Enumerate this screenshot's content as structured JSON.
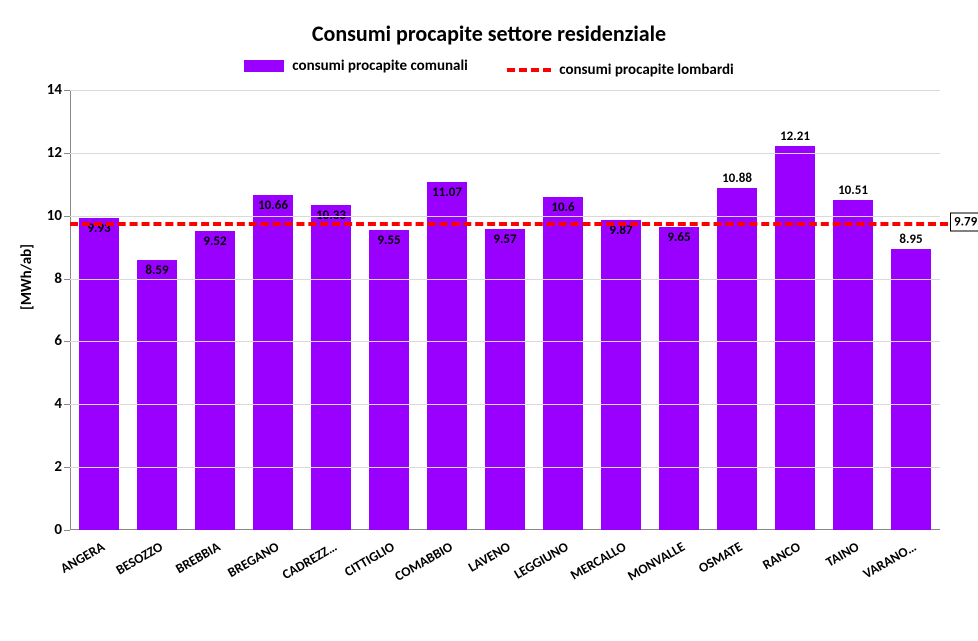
{
  "chart": {
    "type": "bar",
    "title": "Consumi procapite settore residenziale",
    "title_fontsize": 22,
    "ylabel": "[MWh/ab]",
    "label_fontsize": 15,
    "ylim": [
      0,
      14
    ],
    "ytick_step": 2,
    "yticks": [
      0,
      2,
      4,
      6,
      8,
      10,
      12,
      14
    ],
    "grid_color": "#d9d9d9",
    "background_color": "#ffffff",
    "bar_color": "#9900ff",
    "bar_width_pct": 70,
    "categories": [
      "ANGERA",
      "BESOZZO",
      "BREBBIA",
      "BREGANO",
      "CADREZZ…",
      "CITTIGLIO",
      "COMABBIO",
      "LAVENO",
      "LEGGIUNO",
      "MERCALLO",
      "MONVALLE",
      "OSMATE",
      "RANCO",
      "TAINO",
      "VARANO…"
    ],
    "values": [
      9.93,
      8.59,
      9.52,
      10.66,
      10.33,
      9.55,
      11.07,
      9.57,
      10.6,
      9.87,
      9.65,
      10.88,
      12.21,
      10.51,
      8.95
    ],
    "value_label_positions": [
      "in",
      "in",
      "in",
      "in",
      "in",
      "in",
      "in",
      "in",
      "in",
      "in",
      "in",
      "above",
      "above",
      "above",
      "above"
    ],
    "reference_line": {
      "value": 9.79,
      "label": "9.79",
      "color": "#ff0000",
      "width": 4,
      "style": "dashed"
    },
    "legend": {
      "series_bar": "consumi procapite comunali",
      "series_line": "consumi procapite lombardi"
    },
    "xlabel_rotation_deg": -30,
    "xlabel_fontsize": 13.5,
    "value_label_fontsize": 13
  }
}
